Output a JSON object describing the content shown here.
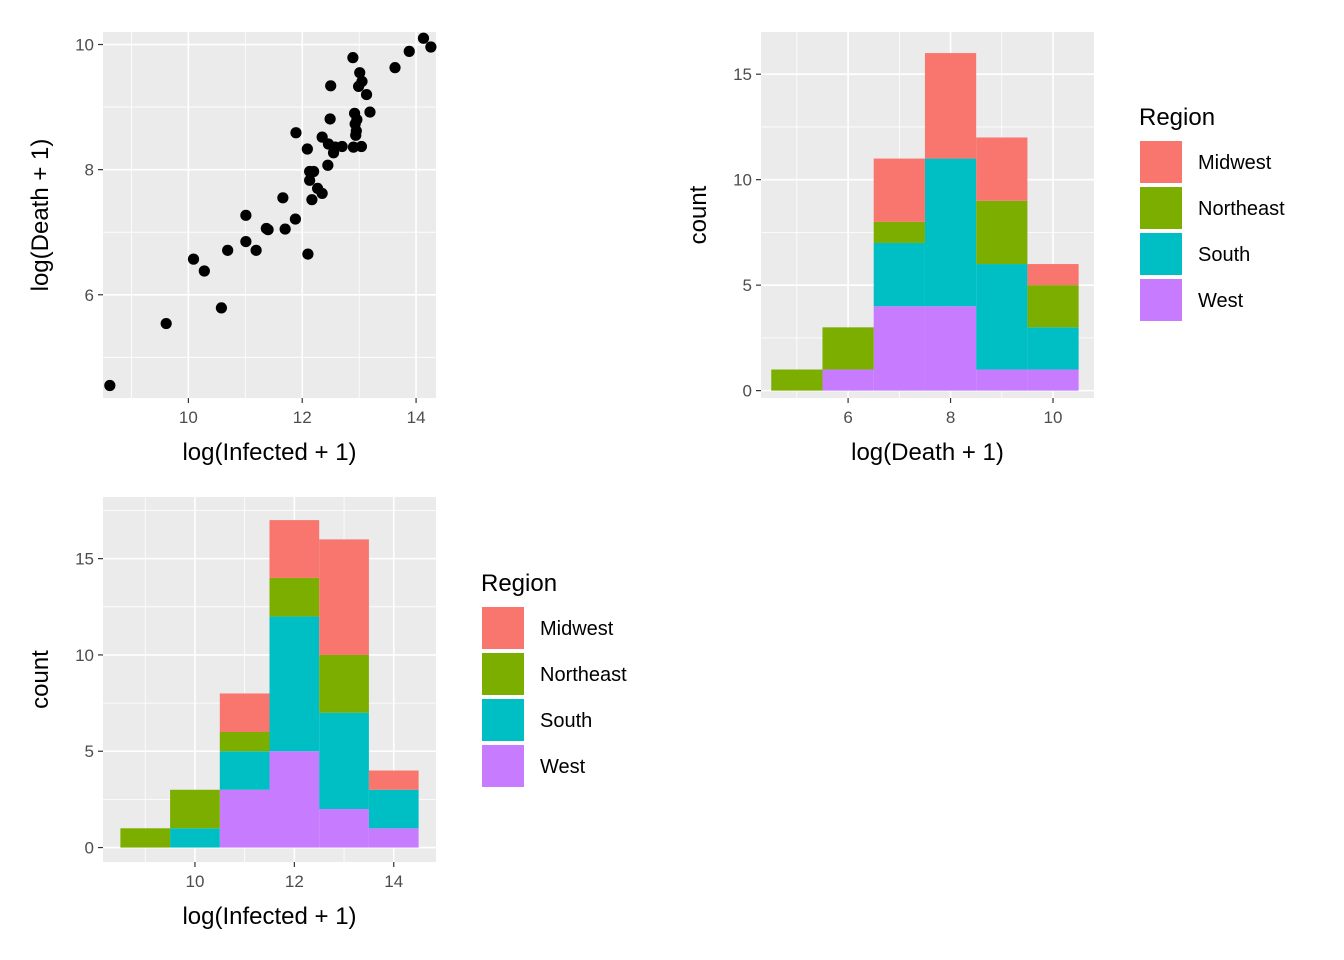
{
  "chart_data": [
    {
      "type": "scatter",
      "xlabel": "log(Infected + 1)",
      "ylabel": "log(Death + 1)",
      "xlim": [
        8.5,
        14.35
      ],
      "ylim": [
        4.35,
        10.2
      ],
      "xticks": [
        10,
        12,
        14
      ],
      "yticks": [
        6,
        8,
        10
      ],
      "grid": true,
      "point_color": "#000000",
      "points": [
        [
          8.62,
          4.55
        ],
        [
          9.61,
          5.54
        ],
        [
          10.09,
          6.57
        ],
        [
          10.28,
          6.38
        ],
        [
          10.58,
          5.79
        ],
        [
          10.69,
          6.71
        ],
        [
          11.01,
          7.27
        ],
        [
          11.01,
          6.85
        ],
        [
          11.19,
          6.71
        ],
        [
          11.37,
          7.06
        ],
        [
          11.4,
          7.04
        ],
        [
          11.66,
          7.55
        ],
        [
          11.7,
          7.05
        ],
        [
          11.88,
          7.21
        ],
        [
          11.89,
          8.59
        ],
        [
          12.09,
          8.33
        ],
        [
          12.1,
          6.65
        ],
        [
          12.13,
          7.97
        ],
        [
          12.13,
          7.83
        ],
        [
          12.17,
          7.52
        ],
        [
          12.2,
          7.97
        ],
        [
          12.27,
          7.7
        ],
        [
          12.35,
          7.62
        ],
        [
          12.35,
          8.52
        ],
        [
          12.45,
          8.07
        ],
        [
          12.46,
          8.41
        ],
        [
          12.49,
          8.81
        ],
        [
          12.5,
          9.34
        ],
        [
          12.55,
          8.27
        ],
        [
          12.58,
          8.36
        ],
        [
          12.7,
          8.37
        ],
        [
          12.89,
          9.79
        ],
        [
          12.9,
          8.36
        ],
        [
          12.92,
          8.9
        ],
        [
          12.93,
          8.73
        ],
        [
          12.94,
          8.55
        ],
        [
          12.95,
          8.62
        ],
        [
          12.96,
          8.8
        ],
        [
          12.99,
          9.33
        ],
        [
          13.01,
          9.55
        ],
        [
          13.04,
          8.37
        ],
        [
          13.05,
          9.41
        ],
        [
          13.13,
          9.2
        ],
        [
          13.19,
          8.92
        ],
        [
          13.63,
          9.63
        ],
        [
          13.88,
          9.89
        ],
        [
          14.13,
          10.1
        ],
        [
          14.26,
          9.96
        ]
      ]
    },
    {
      "type": "bar",
      "stacked": true,
      "xlabel": "log(Death + 1)",
      "ylabel": "count",
      "xlim": [
        4.3,
        10.8
      ],
      "ylim": [
        -0.35,
        17
      ],
      "xticks": [
        6,
        8,
        10
      ],
      "yticks": [
        0,
        5,
        10,
        15
      ],
      "grid": true,
      "bin_centers": [
        5,
        6,
        7,
        8,
        9,
        10
      ],
      "bin_width": 1,
      "series": [
        {
          "name": "West",
          "values": [
            0,
            1,
            4,
            4,
            1,
            1
          ]
        },
        {
          "name": "South",
          "values": [
            0,
            0,
            3,
            7,
            5,
            2
          ]
        },
        {
          "name": "Northeast",
          "values": [
            1,
            2,
            1,
            0,
            3,
            2
          ]
        },
        {
          "name": "Midwest",
          "values": [
            0,
            0,
            3,
            5,
            3,
            1
          ]
        }
      ],
      "legend": {
        "title": "Region",
        "placement": "right"
      }
    },
    {
      "type": "bar",
      "stacked": true,
      "xlabel": "log(Infected + 1)",
      "ylabel": "count",
      "xlim": [
        8.15,
        14.85
      ],
      "ylim": [
        -0.75,
        18.2
      ],
      "xticks": [
        10,
        12,
        14
      ],
      "yticks": [
        0,
        5,
        10,
        15
      ],
      "grid": true,
      "bin_centers": [
        9,
        10,
        11,
        12,
        13,
        14
      ],
      "bin_width": 1,
      "series": [
        {
          "name": "West",
          "values": [
            0,
            0,
            3,
            5,
            2,
            1
          ]
        },
        {
          "name": "South",
          "values": [
            0,
            1,
            2,
            7,
            5,
            2
          ]
        },
        {
          "name": "Northeast",
          "values": [
            1,
            2,
            1,
            2,
            3,
            0
          ]
        },
        {
          "name": "Midwest",
          "values": [
            0,
            0,
            2,
            3,
            6,
            1
          ]
        }
      ],
      "legend": {
        "title": "Region",
        "placement": "right"
      }
    }
  ],
  "legend_order": [
    "Midwest",
    "Northeast",
    "South",
    "West"
  ],
  "colors": {
    "Midwest": "#F8766D",
    "Northeast": "#7CAE00",
    "South": "#00BFC4",
    "West": "#C77CFF",
    "panel_bg": "#EBEBEB",
    "grid": "#FFFFFF",
    "tick": "#333333",
    "tick_label": "#4D4D4D"
  }
}
